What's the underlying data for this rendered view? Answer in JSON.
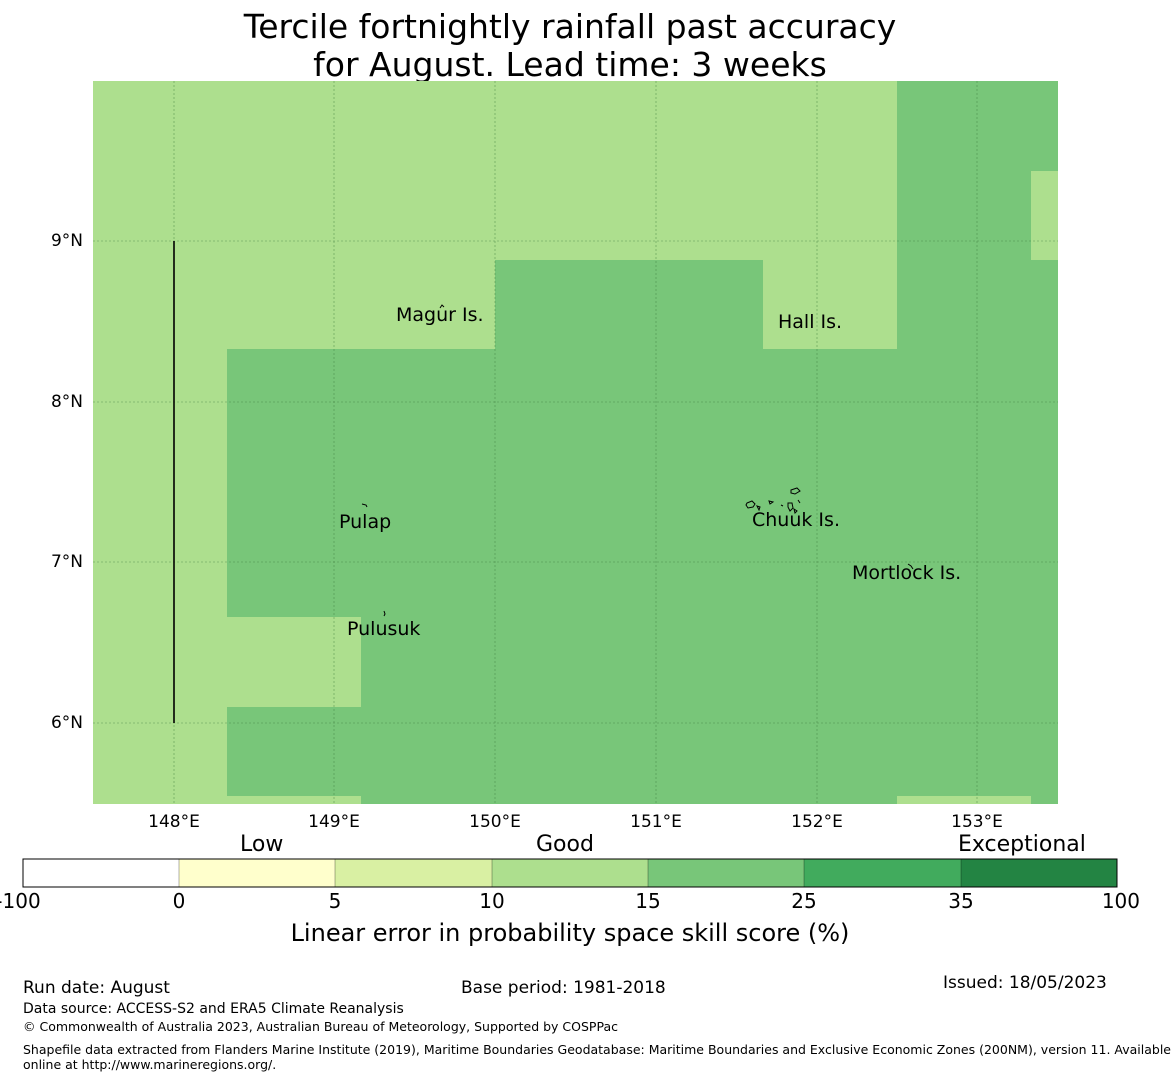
{
  "title": {
    "line1": "Tercile fortnightly rainfall past accuracy",
    "line2": "for August. Lead time: 3 weeks"
  },
  "map": {
    "lat_labels": [
      "9°N",
      "8°N",
      "7°N",
      "6°N"
    ],
    "lon_labels": [
      "148°E",
      "149°E",
      "150°E",
      "151°E",
      "152°E",
      "153°E"
    ],
    "islands": [
      "Magur Is.",
      "Hall Is.",
      "Pulap",
      "Chuuk Is.",
      "Mortlock Is.",
      "Pulusuk"
    ],
    "colors": {
      "band_10_15": "#addf8e",
      "band_15_25": "#78c679",
      "band_25_35": "#41ab5d",
      "band_35_100": "#238443",
      "band_5_10": "#d9f0a3",
      "band_0_5": "#ffffcc",
      "band_neg": "#ffffff"
    }
  },
  "colorbar": {
    "categories": [
      "Low",
      "Good",
      "Exceptional"
    ],
    "ticks": [
      "-100",
      "0",
      "5",
      "10",
      "15",
      "25",
      "35",
      "100"
    ],
    "label": "Linear error in probability space skill score (%)"
  },
  "footer": {
    "run_date": "Run date: August",
    "base_period": "Base period: 1981-2018",
    "issued": "Issued: 18/05/2023",
    "data_source": "Data source: ACCESS-S2 and ERA5 Climate Reanalysis",
    "copyright": "© Commonwealth of Australia 2023, Australian Bureau of Meteorology, Supported by COSPPac",
    "shapefile_line1": "Shapefile data extracted from Flanders Marine Institute (2019), Maritime Boundaries Geodatabase: Maritime Boundaries and Exclusive Economic Zones (200NM), version 11. Available",
    "shapefile_line2": "online at http://www.marineregions.org/."
  }
}
